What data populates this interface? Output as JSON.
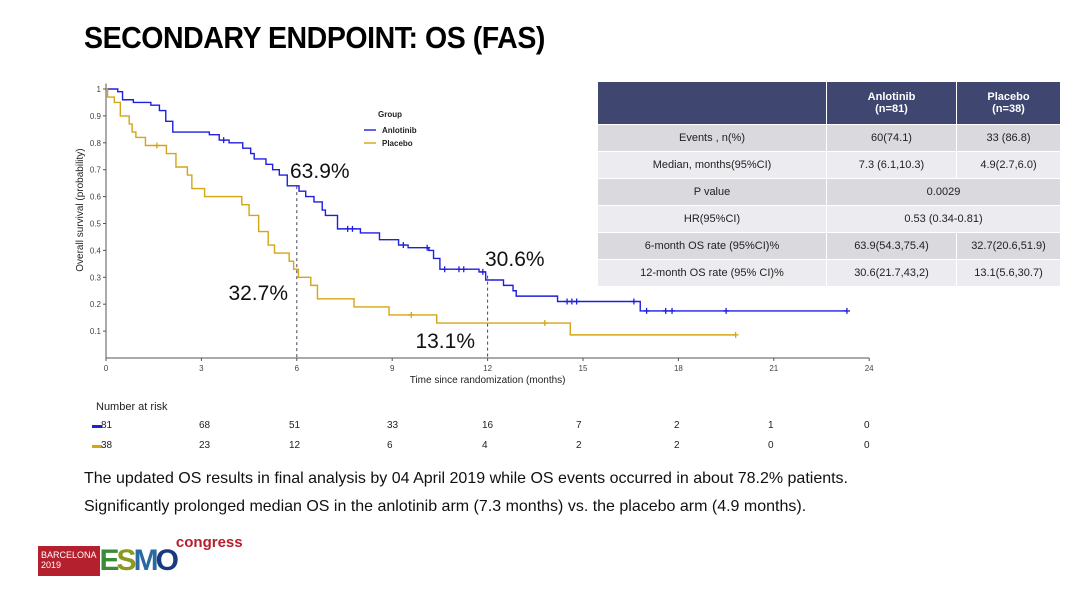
{
  "title": "SECONDARY ENDPOINT: OS (FAS)",
  "chart_data": {
    "type": "line",
    "subtype": "kaplan-meier",
    "xlabel": "Time since randomization (months)",
    "ylabel": "Overall survival (probability)",
    "xlim": [
      0,
      24
    ],
    "ylim": [
      0,
      1.0
    ],
    "xticks": [
      0,
      3,
      6,
      9,
      12,
      15,
      18,
      21,
      24
    ],
    "yticks": [
      0.1,
      0.2,
      0.3,
      0.4,
      0.5,
      0.6,
      0.7,
      0.8,
      0.9,
      1.0
    ],
    "legend": {
      "title": "Group",
      "placement": "top-center"
    },
    "series": [
      {
        "name": "Anlotinib",
        "color": "#1f1fe0",
        "steps": [
          [
            0,
            1.0
          ],
          [
            0.37,
            0.99
          ],
          [
            0.52,
            0.96
          ],
          [
            0.86,
            0.95
          ],
          [
            1.41,
            0.94
          ],
          [
            1.68,
            0.92
          ],
          [
            1.88,
            0.88
          ],
          [
            2.1,
            0.84
          ],
          [
            3.25,
            0.83
          ],
          [
            3.56,
            0.81
          ],
          [
            3.87,
            0.8
          ],
          [
            4.3,
            0.78
          ],
          [
            4.55,
            0.76
          ],
          [
            4.66,
            0.74
          ],
          [
            5.03,
            0.72
          ],
          [
            5.24,
            0.7
          ],
          [
            5.45,
            0.68
          ],
          [
            5.7,
            0.64
          ],
          [
            6.07,
            0.62
          ],
          [
            6.28,
            0.6
          ],
          [
            6.54,
            0.58
          ],
          [
            6.8,
            0.55
          ],
          [
            6.9,
            0.53
          ],
          [
            7.28,
            0.48
          ],
          [
            8.0,
            0.465
          ],
          [
            8.6,
            0.44
          ],
          [
            9.2,
            0.42
          ],
          [
            9.5,
            0.41
          ],
          [
            10.15,
            0.4
          ],
          [
            10.3,
            0.37
          ],
          [
            10.5,
            0.33
          ],
          [
            11.73,
            0.32
          ],
          [
            11.94,
            0.29
          ],
          [
            12.5,
            0.27
          ],
          [
            12.8,
            0.25
          ],
          [
            12.9,
            0.23
          ],
          [
            14.2,
            0.21
          ],
          [
            16.8,
            0.175
          ]
        ],
        "end": 23.3,
        "censored": [
          3.7,
          7.6,
          7.75,
          9.35,
          10.1,
          10.65,
          11.1,
          11.25,
          11.85,
          14.5,
          14.65,
          14.8,
          16.6,
          17.0,
          17.6,
          17.8,
          19.5,
          23.3
        ]
      },
      {
        "name": "Placebo",
        "color": "#d4a514",
        "steps": [
          [
            0,
            1.0
          ],
          [
            0.05,
            0.97
          ],
          [
            0.26,
            0.95
          ],
          [
            0.45,
            0.9
          ],
          [
            0.73,
            0.87
          ],
          [
            0.82,
            0.84
          ],
          [
            0.94,
            0.82
          ],
          [
            1.24,
            0.79
          ],
          [
            1.9,
            0.76
          ],
          [
            2.2,
            0.71
          ],
          [
            2.56,
            0.68
          ],
          [
            2.7,
            0.63
          ],
          [
            3.1,
            0.6
          ],
          [
            4.27,
            0.57
          ],
          [
            4.5,
            0.53
          ],
          [
            4.8,
            0.47
          ],
          [
            5.1,
            0.42
          ],
          [
            5.3,
            0.39
          ],
          [
            5.76,
            0.36
          ],
          [
            5.9,
            0.33
          ],
          [
            6.05,
            0.3
          ],
          [
            6.44,
            0.27
          ],
          [
            6.65,
            0.22
          ],
          [
            7.8,
            0.19
          ],
          [
            8.9,
            0.16
          ],
          [
            10.4,
            0.13
          ],
          [
            14.6,
            0.086
          ]
        ],
        "end": 19.8,
        "censored": [
          1.6,
          9.6,
          13.8,
          19.8
        ]
      }
    ],
    "annotations": [
      {
        "text": "63.9%",
        "x": 6,
        "y": 0.639
      },
      {
        "text": "32.7%",
        "x": 6,
        "y": 0.327
      },
      {
        "text": "30.6%",
        "x": 12,
        "y": 0.306
      },
      {
        "text": "13.1%",
        "x": 12,
        "y": 0.131
      }
    ],
    "risk_table": {
      "title": "Number at risk",
      "times": [
        0,
        3,
        6,
        9,
        12,
        15,
        18,
        21,
        24
      ],
      "rows": [
        {
          "name": "Anlotinib",
          "values": [
            81,
            68,
            51,
            33,
            16,
            7,
            2,
            1,
            0
          ]
        },
        {
          "name": "Placebo",
          "values": [
            38,
            23,
            12,
            6,
            4,
            2,
            2,
            0,
            0
          ]
        }
      ]
    }
  },
  "table": {
    "headers": [
      "",
      "Anlotinib\n(n=81)",
      "Placebo\n(n=38)"
    ],
    "header_a1": "Anlotinib",
    "header_a2": "(n=81)",
    "header_p1": "Placebo",
    "header_p2": "(n=38)",
    "rows": [
      {
        "label": "Events , n(%)",
        "a": "60(74.1)",
        "p": "33 (86.8)"
      },
      {
        "label": "Median, months(95%CI)",
        "a": "7.3 (6.1,10.3)",
        "p": "4.9(2.7,6.0)"
      },
      {
        "label": "P value",
        "merged": "0.0029"
      },
      {
        "label": "HR(95%CI)",
        "merged": "0.53 (0.34-0.81)"
      },
      {
        "label": "6-month OS rate (95%CI)%",
        "a": "63.9(54.3,75.4)",
        "p": "32.7(20.6,51.9)"
      },
      {
        "label": "12-month OS rate (95% CI)%",
        "a": "30.6(21.7,43,2)",
        "p": "13.1(5.6,30.7)"
      }
    ]
  },
  "notes": [
    "The updated OS results in final analysis by 04 April 2019 while OS events occurred in about 78.2% patients.",
    "Significantly prolonged median OS in the anlotinib arm (7.3 months) vs. the placebo arm (4.9 months)."
  ],
  "logo": {
    "city": "BARCELONA",
    "year": "2019",
    "name": "ESMO",
    "suffix": "congress"
  }
}
